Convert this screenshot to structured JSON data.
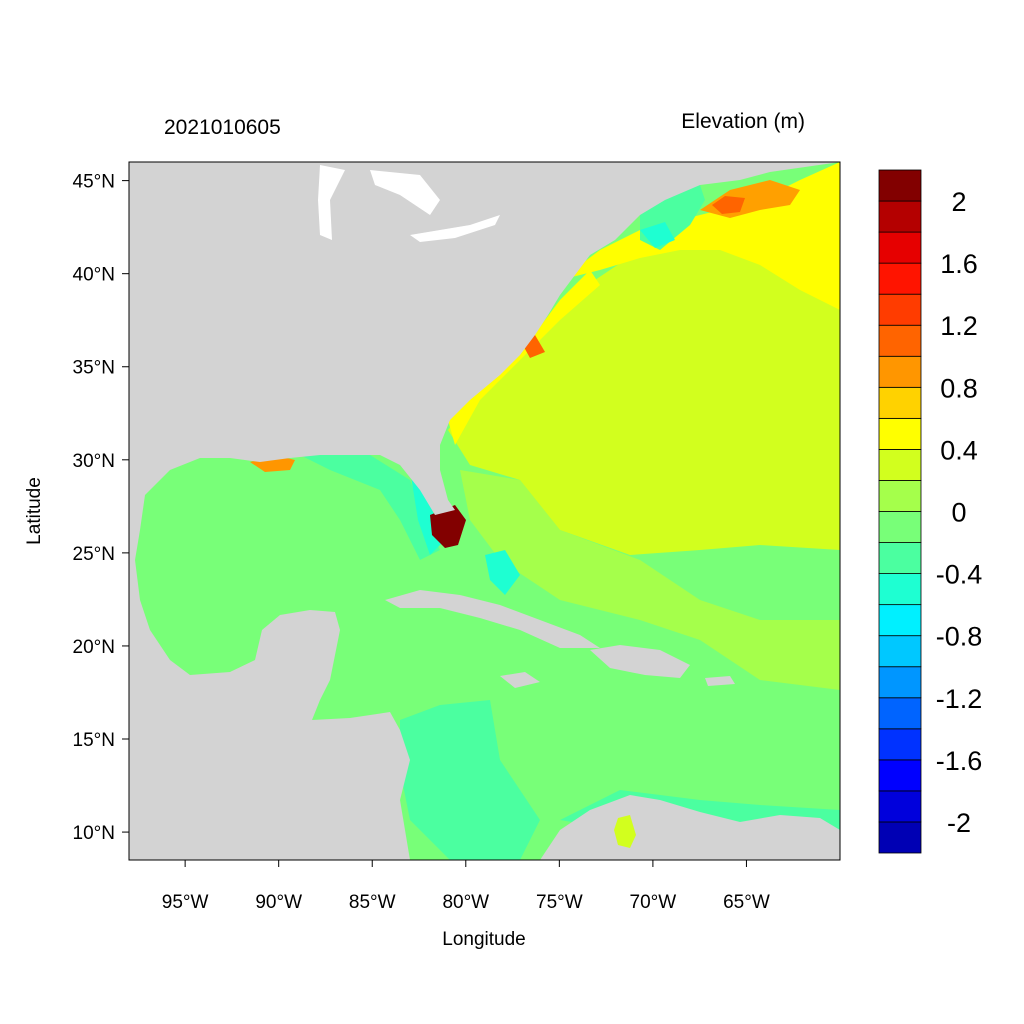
{
  "map": {
    "timestamp": "2021010605",
    "variable_title": "Elevation (m)",
    "xlabel": "Longitude",
    "ylabel": "Latitude",
    "region": {
      "lon_range": [
        -98,
        -60
      ],
      "lat_range": [
        8.5,
        46
      ]
    },
    "x_ticks": [
      {
        "value": -95,
        "label": "95°W"
      },
      {
        "value": -90,
        "label": "90°W"
      },
      {
        "value": -85,
        "label": "85°W"
      },
      {
        "value": -80,
        "label": "80°W"
      },
      {
        "value": -75,
        "label": "75°W"
      },
      {
        "value": -70,
        "label": "70°W"
      },
      {
        "value": -65,
        "label": "65°W"
      }
    ],
    "y_ticks": [
      {
        "value": 45,
        "label": "45°N"
      },
      {
        "value": 40,
        "label": "40°N"
      },
      {
        "value": 35,
        "label": "35°N"
      },
      {
        "value": 30,
        "label": "30°N"
      },
      {
        "value": 25,
        "label": "25°N"
      },
      {
        "value": 20,
        "label": "20°N"
      },
      {
        "value": 15,
        "label": "15°N"
      },
      {
        "value": 10,
        "label": "10°N"
      }
    ],
    "land_color": "#d3d3d3",
    "colorbar": {
      "colors_bottom_to_top": [
        "#0000b4",
        "#0000dc",
        "#0000ff",
        "#0032ff",
        "#0064ff",
        "#0096ff",
        "#00c8ff",
        "#00f0ff",
        "#1effd2",
        "#4bffa0",
        "#78ff78",
        "#a5ff4b",
        "#d2ff1e",
        "#ffff00",
        "#ffd200",
        "#ff9600",
        "#ff6400",
        "#ff3c00",
        "#ff1400",
        "#e60000",
        "#b40000",
        "#820000"
      ],
      "labels": [
        {
          "value": -2,
          "label": "-2"
        },
        {
          "value": -1.6,
          "label": "-1.6"
        },
        {
          "value": -1.2,
          "label": "-1.2"
        },
        {
          "value": -0.8,
          "label": "-0.8"
        },
        {
          "value": -0.4,
          "label": "-0.4"
        },
        {
          "value": 0,
          "label": "0"
        },
        {
          "value": 0.4,
          "label": "0.4"
        },
        {
          "value": 0.8,
          "label": "0.8"
        },
        {
          "value": 1.2,
          "label": "1.2"
        },
        {
          "value": 1.6,
          "label": "1.6"
        },
        {
          "value": 2,
          "label": "2"
        }
      ]
    }
  }
}
